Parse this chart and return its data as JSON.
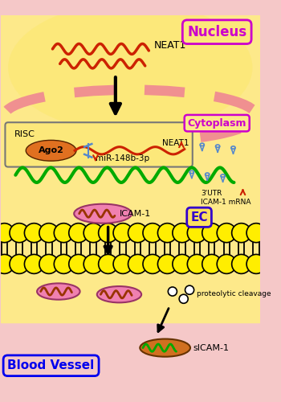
{
  "bg_pink": "#f5c8c8",
  "bg_yellow": "#fde98a",
  "bg_yellow_dark": "#fce060",
  "nucleus_label": "Nucleus",
  "cytoplasm_label": "Cytoplasm",
  "ec_label": "EC",
  "bv_label": "Blood Vessel",
  "neat1_label": "NEAT1",
  "risc_label": "RISC",
  "ago2_label": "Ago2",
  "mir_label": "miR-148b-3p",
  "utr_label": "3'UTR\nICAM-1 mRNA",
  "icam1_label": "ICAM-1",
  "sicam1_label": "sICAM-1",
  "proteo_label": "proteolytic cleavage",
  "col_purple": "#cc00cc",
  "col_blue": "#0000ee",
  "col_darkblue": "#3300cc",
  "col_red": "#cc2200",
  "col_orange": "#e07020",
  "col_green": "#00aa00",
  "col_pink_mem": "#f09090",
  "col_yellow_mem": "#ffee00",
  "col_pink_oval": "#f080b0",
  "col_orange_oval": "#d07020",
  "col_gray": "#666666"
}
